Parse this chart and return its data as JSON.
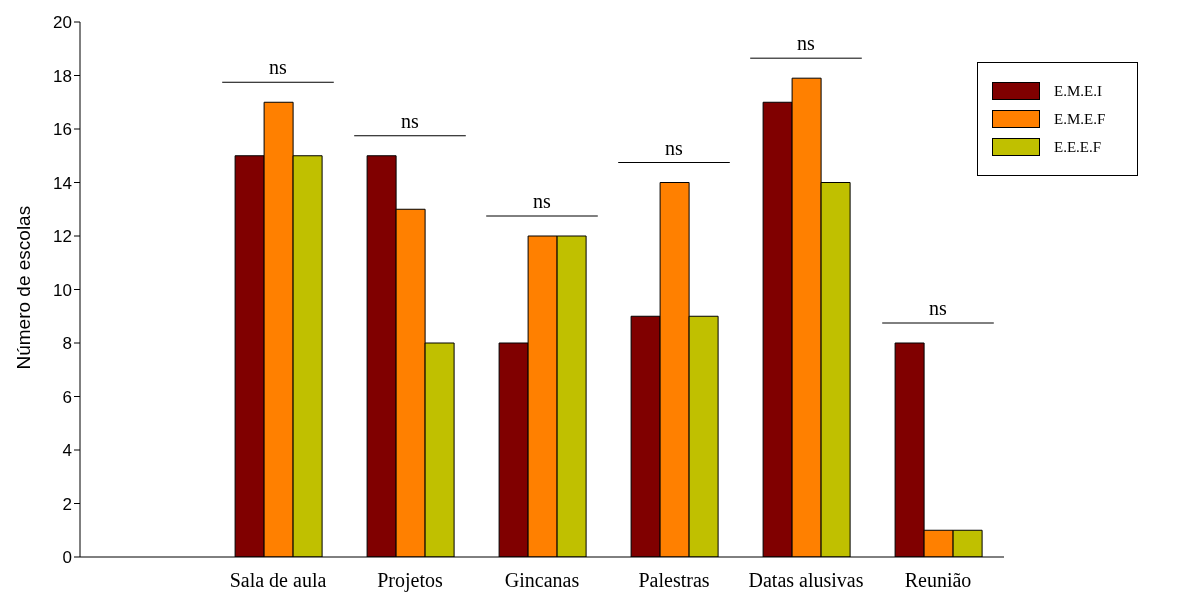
{
  "chart_data": {
    "type": "bar",
    "ylabel": "Número de escolas",
    "categories": [
      null,
      "Sala de aula",
      "Projetos",
      "Gincanas",
      "Palestras",
      "Datas alusivas",
      "Reunião"
    ],
    "series": [
      {
        "name": "E.M.E.I",
        "color": "#800000",
        "values": [
          null,
          15,
          15,
          8,
          9,
          17,
          8
        ]
      },
      {
        "name": "E.M.E.F",
        "color": "#ff8000",
        "values": [
          null,
          17,
          13,
          12,
          14,
          17.9,
          1
        ]
      },
      {
        "name": "E.E.E.F",
        "color": "#c0c000",
        "values": [
          null,
          15,
          8,
          12,
          9,
          14,
          1
        ]
      }
    ],
    "ylim": [
      0,
      20
    ],
    "yticks": [
      0,
      2,
      4,
      6,
      8,
      10,
      12,
      14,
      16,
      18,
      20
    ],
    "grid": false,
    "legend": "top right",
    "annotations": [
      "ns",
      "ns",
      "ns",
      "ns",
      "ns",
      "ns"
    ]
  }
}
